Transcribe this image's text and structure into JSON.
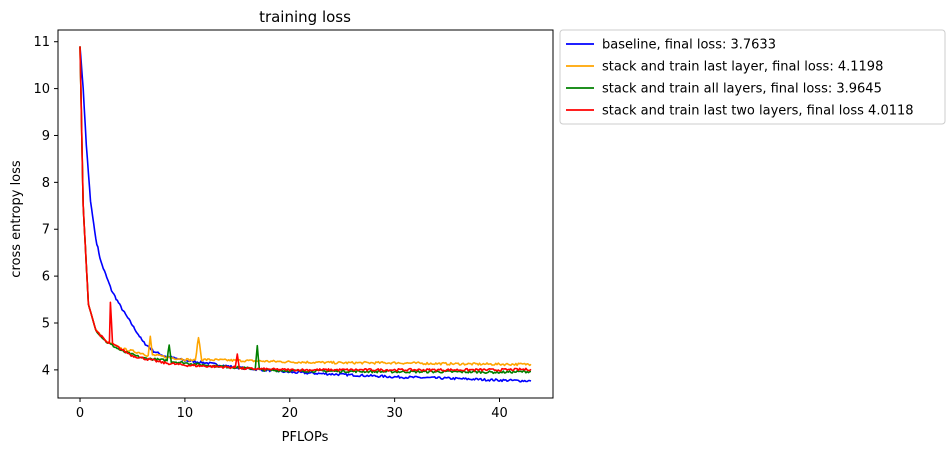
{
  "chart_data": {
    "type": "line",
    "title": "training loss",
    "xlabel": "PFLOPs",
    "ylabel": "cross entropy loss",
    "xlim": [
      -2.1,
      45.1
    ],
    "ylim": [
      3.4,
      11.25
    ],
    "x_ticks": [
      0,
      10,
      20,
      30,
      40
    ],
    "y_ticks": [
      4,
      5,
      6,
      7,
      8,
      9,
      10,
      11
    ],
    "grid": false,
    "legend_position": "outside-top-right",
    "series": [
      {
        "name": "baseline, final loss: 3.7633",
        "color": "#0000ff",
        "points": [
          [
            0,
            10.9
          ],
          [
            0.3,
            10.0
          ],
          [
            0.6,
            8.8
          ],
          [
            1,
            7.6
          ],
          [
            1.5,
            6.8
          ],
          [
            2,
            6.3
          ],
          [
            3,
            5.7
          ],
          [
            4,
            5.3
          ],
          [
            5,
            4.95
          ],
          [
            6,
            4.6
          ],
          [
            7,
            4.4
          ],
          [
            8,
            4.3
          ],
          [
            10,
            4.2
          ],
          [
            12,
            4.15
          ],
          [
            15,
            4.05
          ],
          [
            20,
            3.95
          ],
          [
            25,
            3.9
          ],
          [
            30,
            3.85
          ],
          [
            35,
            3.82
          ],
          [
            40,
            3.78
          ],
          [
            43,
            3.7633
          ]
        ]
      },
      {
        "name": "stack and train last layer, final loss: 4.1198",
        "color": "#ffa500",
        "points": [
          [
            0,
            10.9
          ],
          [
            0.3,
            7.5
          ],
          [
            0.8,
            5.4
          ],
          [
            1.5,
            4.85
          ],
          [
            2.5,
            4.6
          ],
          [
            4,
            4.45
          ],
          [
            6,
            4.35
          ],
          [
            6.5,
            4.3
          ],
          [
            6.7,
            4.7
          ],
          [
            6.9,
            4.32
          ],
          [
            9,
            4.25
          ],
          [
            11,
            4.2
          ],
          [
            11.3,
            4.7
          ],
          [
            11.6,
            4.22
          ],
          [
            15,
            4.2
          ],
          [
            20,
            4.17
          ],
          [
            25,
            4.15
          ],
          [
            30,
            4.15
          ],
          [
            35,
            4.13
          ],
          [
            40,
            4.12
          ],
          [
            43,
            4.1198
          ]
        ]
      },
      {
        "name": "stack and train all layers, final loss: 3.9645",
        "color": "#008000",
        "points": [
          [
            0,
            10.9
          ],
          [
            0.3,
            7.5
          ],
          [
            0.8,
            5.4
          ],
          [
            1.5,
            4.85
          ],
          [
            2.5,
            4.6
          ],
          [
            4,
            4.4
          ],
          [
            6,
            4.25
          ],
          [
            8.3,
            4.2
          ],
          [
            8.5,
            4.55
          ],
          [
            8.7,
            4.18
          ],
          [
            12,
            4.1
          ],
          [
            16.7,
            4.02
          ],
          [
            16.9,
            4.5
          ],
          [
            17.1,
            4.0
          ],
          [
            20,
            3.98
          ],
          [
            25,
            3.97
          ],
          [
            30,
            3.96
          ],
          [
            35,
            3.96
          ],
          [
            40,
            3.95
          ],
          [
            43,
            3.9645
          ]
        ]
      },
      {
        "name": "stack and train last two layers, final loss 4.0118",
        "color": "#ff0000",
        "points": [
          [
            0,
            10.9
          ],
          [
            0.3,
            7.5
          ],
          [
            0.8,
            5.4
          ],
          [
            1.5,
            4.85
          ],
          [
            2.5,
            4.6
          ],
          [
            2.8,
            4.55
          ],
          [
            2.9,
            5.45
          ],
          [
            3.1,
            4.55
          ],
          [
            5,
            4.3
          ],
          [
            8,
            4.15
          ],
          [
            10,
            4.1
          ],
          [
            14.8,
            4.05
          ],
          [
            15,
            4.35
          ],
          [
            15.2,
            4.03
          ],
          [
            20,
            4.0
          ],
          [
            25,
            4.0
          ],
          [
            30,
            4.0
          ],
          [
            35,
            4.0
          ],
          [
            40,
            4.0
          ],
          [
            43,
            4.0118
          ]
        ]
      }
    ]
  }
}
